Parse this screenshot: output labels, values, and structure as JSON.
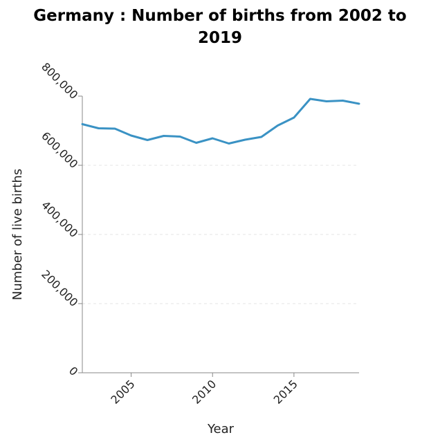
{
  "chart_data": {
    "type": "line",
    "title_lines": [
      "Germany : Number of births from 2002 to",
      "2019"
    ],
    "xlabel": "Year",
    "ylabel": "Number of live births",
    "xlim": [
      2002,
      2019
    ],
    "ylim": [
      0,
      800000
    ],
    "x_ticks": [
      2005,
      2010,
      2015
    ],
    "x_tick_labels": [
      "2005",
      "2010",
      "2015"
    ],
    "y_ticks": [
      0,
      200000,
      400000,
      600000,
      800000
    ],
    "y_tick_labels": [
      "0",
      "200,000",
      "400,000",
      "600,000",
      "800,000"
    ],
    "grid": "horizontal dashed",
    "line_color": "#3a92c4",
    "series": [
      {
        "x": [
          2002,
          2003,
          2004,
          2005,
          2006,
          2007,
          2008,
          2009,
          2010,
          2011,
          2012,
          2013,
          2014,
          2015,
          2016,
          2017,
          2018,
          2019
        ],
        "values": [
          719000,
          707000,
          706000,
          686000,
          673000,
          685000,
          683000,
          665000,
          678000,
          663000,
          674000,
          682000,
          715000,
          738000,
          792000,
          785000,
          787000,
          778000
        ]
      }
    ]
  }
}
